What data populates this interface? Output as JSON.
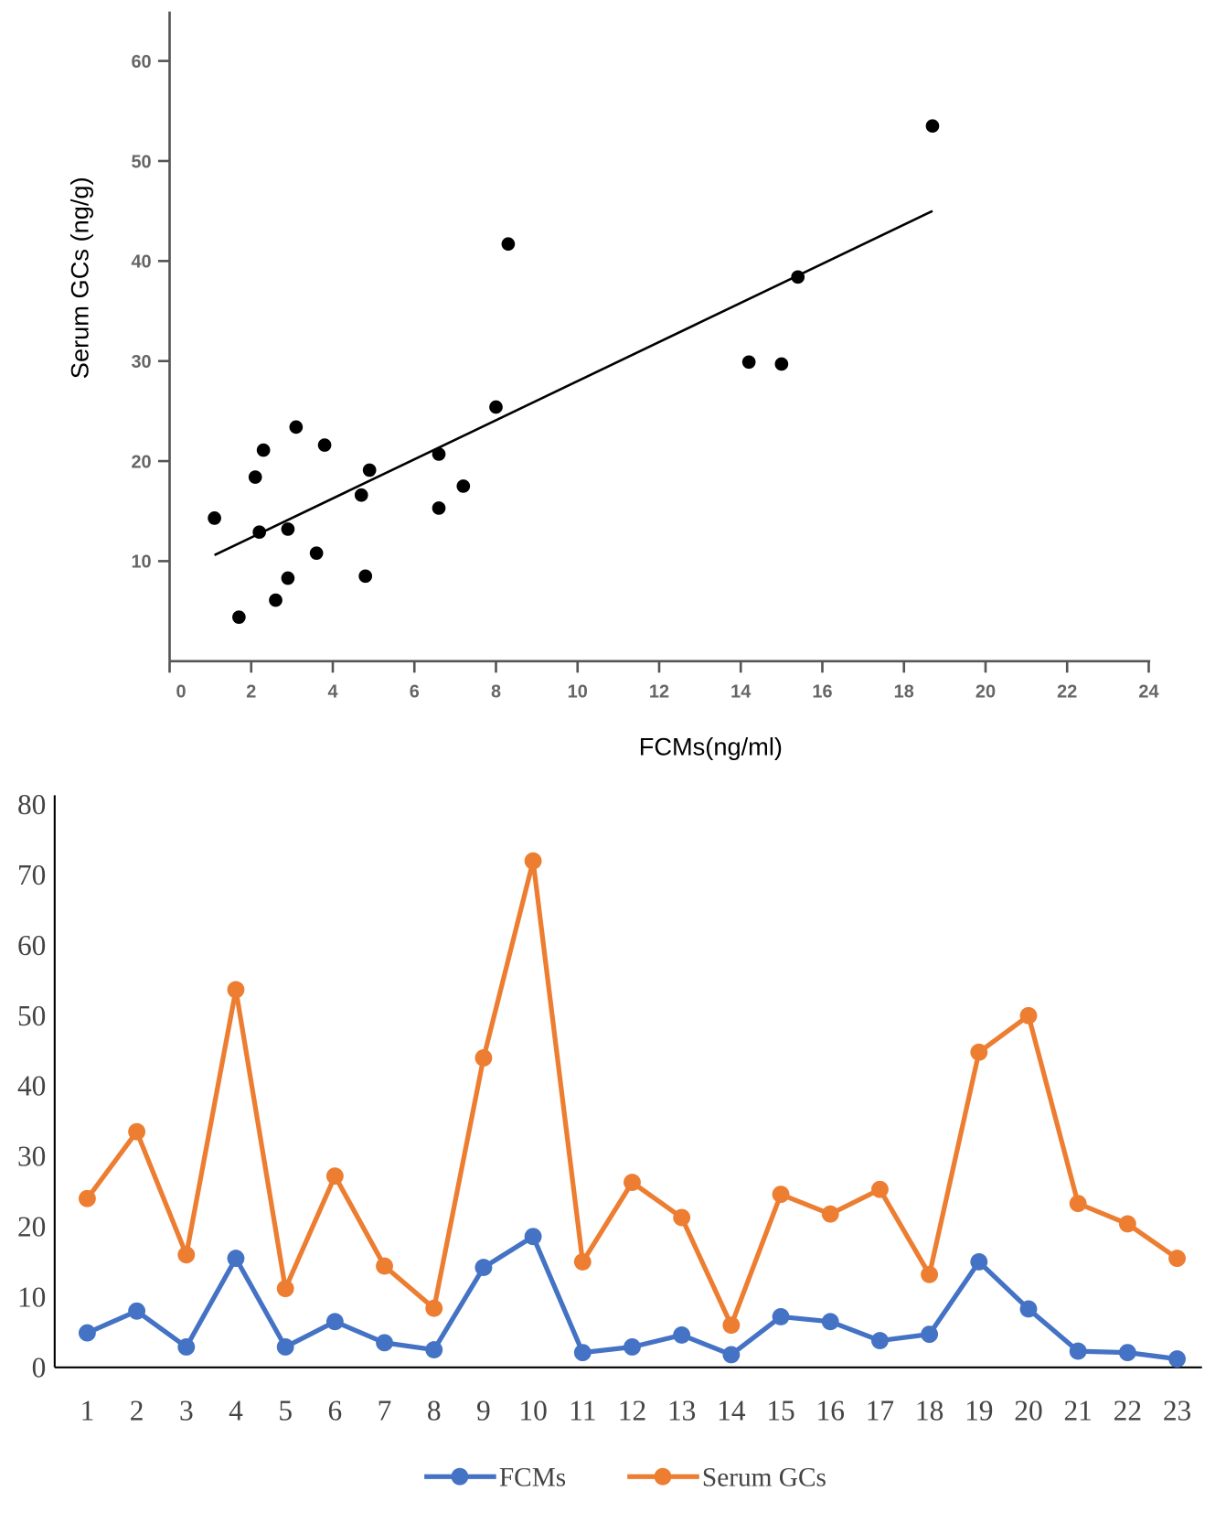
{
  "chart_data": [
    {
      "type": "scatter",
      "title": "",
      "xlabel": "FCMs(ng/ml)",
      "ylabel": "Serum GCs (ng/g)",
      "xlim": [
        0,
        24
      ],
      "ylim": [
        0,
        65
      ],
      "xticks": [
        "0",
        "2",
        "4",
        "6",
        "8",
        "10",
        "12",
        "14",
        "16",
        "18",
        "20",
        "22",
        "24"
      ],
      "yticks": [
        "10",
        "20",
        "30",
        "40",
        "50",
        "60"
      ],
      "grid": false,
      "points": [
        [
          1.1,
          14.3
        ],
        [
          1.7,
          4.4
        ],
        [
          2.1,
          18.4
        ],
        [
          2.2,
          12.9
        ],
        [
          2.3,
          21.1
        ],
        [
          2.6,
          6.1
        ],
        [
          2.9,
          13.2
        ],
        [
          2.9,
          8.3
        ],
        [
          3.1,
          23.4
        ],
        [
          3.6,
          10.8
        ],
        [
          3.8,
          21.6
        ],
        [
          4.7,
          16.6
        ],
        [
          4.8,
          8.5
        ],
        [
          4.9,
          19.1
        ],
        [
          6.6,
          20.7
        ],
        [
          6.6,
          15.3
        ],
        [
          7.2,
          17.5
        ],
        [
          8.0,
          25.4
        ],
        [
          8.3,
          41.7
        ],
        [
          14.2,
          29.9
        ],
        [
          15.0,
          29.7
        ],
        [
          15.4,
          38.4
        ],
        [
          18.7,
          53.5
        ]
      ],
      "trendline": [
        [
          1.1,
          10.6
        ],
        [
          18.7,
          45.0
        ]
      ]
    },
    {
      "type": "line",
      "title": "",
      "ylim": [
        0,
        80
      ],
      "yticks": [
        "0",
        "10",
        "20",
        "30",
        "40",
        "50",
        "60",
        "70",
        "80"
      ],
      "categories": [
        "1",
        "2",
        "3",
        "4",
        "5",
        "6",
        "7",
        "8",
        "9",
        "10",
        "11",
        "12",
        "13",
        "14",
        "15",
        "16",
        "17",
        "18",
        "19",
        "20",
        "21",
        "22",
        "23"
      ],
      "legend_position": "bottom",
      "series": [
        {
          "name": "FCMs",
          "color": "#4472C4",
          "values": [
            4.9,
            8.0,
            2.9,
            15.5,
            2.9,
            6.5,
            3.5,
            2.5,
            14.2,
            18.6,
            2.1,
            2.9,
            4.6,
            1.8,
            7.2,
            6.5,
            3.8,
            4.7,
            15.0,
            8.3,
            2.3,
            2.1,
            1.2
          ]
        },
        {
          "name": "Serum GCs",
          "color": "#ED7D31",
          "values": [
            24.0,
            33.5,
            16.0,
            53.7,
            11.2,
            27.2,
            14.4,
            8.4,
            44.0,
            72.0,
            15.0,
            26.3,
            21.3,
            6.0,
            24.6,
            21.8,
            25.3,
            13.2,
            44.8,
            50.0,
            23.3,
            20.4,
            15.5
          ]
        }
      ]
    }
  ]
}
